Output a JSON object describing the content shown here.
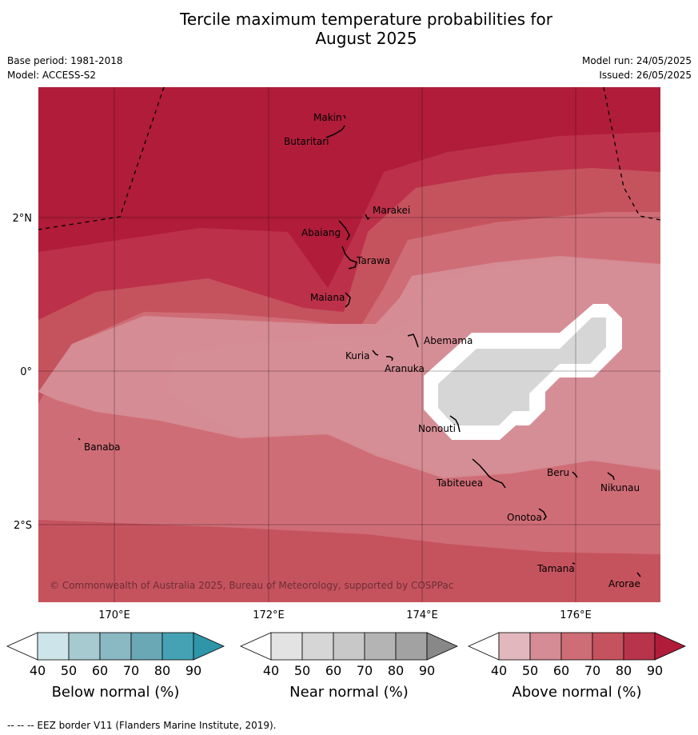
{
  "title_line1": "Tercile maximum temperature probabilities for",
  "title_line2": "August 2025",
  "base_period": "Base period: 1981-2018",
  "model": "Model: ACCESS-S2",
  "model_run": "Model run: 24/05/2025",
  "issued": "Issued: 26/05/2025",
  "map": {
    "lat_labels": [
      "2°N",
      "0°",
      "2°S"
    ],
    "lon_labels": [
      "170°E",
      "172°E",
      "174°E",
      "176°E"
    ],
    "islands": [
      "Makin",
      "Butaritari",
      "Marakei",
      "Abaiang",
      "Tarawa",
      "Maiana",
      "Abemama",
      "Kuria",
      "Aranuka",
      "Nonouti",
      "Banaba",
      "Beru",
      "Tabiteuea",
      "Nikunau",
      "Onotoa",
      "Tamana",
      "Arorae"
    ],
    "copyright": "© Commonwealth of Australia 2025, Bureau of Meteorology, supported by COSPPac",
    "colors": {
      "above_90": "#b01c3a",
      "above_80": "#bc3049",
      "above_70": "#c5535e",
      "above_60": "#cf6d76",
      "above_50": "#d58c94",
      "near_50": "#d6d6d6"
    }
  },
  "colorbars": [
    {
      "label": "Below normal (%)",
      "ticks": [
        "40",
        "50",
        "60",
        "70",
        "80",
        "90"
      ],
      "colors": [
        "#ffffff",
        "#cde4ea",
        "#a7c9d0",
        "#8ab8c3",
        "#6aa8b6",
        "#45a2b4",
        "#2f95a9"
      ]
    },
    {
      "label": "Near normal (%)",
      "ticks": [
        "40",
        "50",
        "60",
        "70",
        "80",
        "90"
      ],
      "colors": [
        "#ffffff",
        "#e3e3e3",
        "#d6d6d6",
        "#c8c8c8",
        "#b4b4b4",
        "#a2a2a2",
        "#888888"
      ]
    },
    {
      "label": "Above normal (%)",
      "ticks": [
        "40",
        "50",
        "60",
        "70",
        "80",
        "90"
      ],
      "colors": [
        "#ffffff",
        "#e2b8be",
        "#d58c94",
        "#cf6d76",
        "#c5535e",
        "#b7344a",
        "#b01c3a"
      ]
    }
  ],
  "footer": "--  --  -- EEZ border V11 (Flanders Marine Institute, 2019)."
}
